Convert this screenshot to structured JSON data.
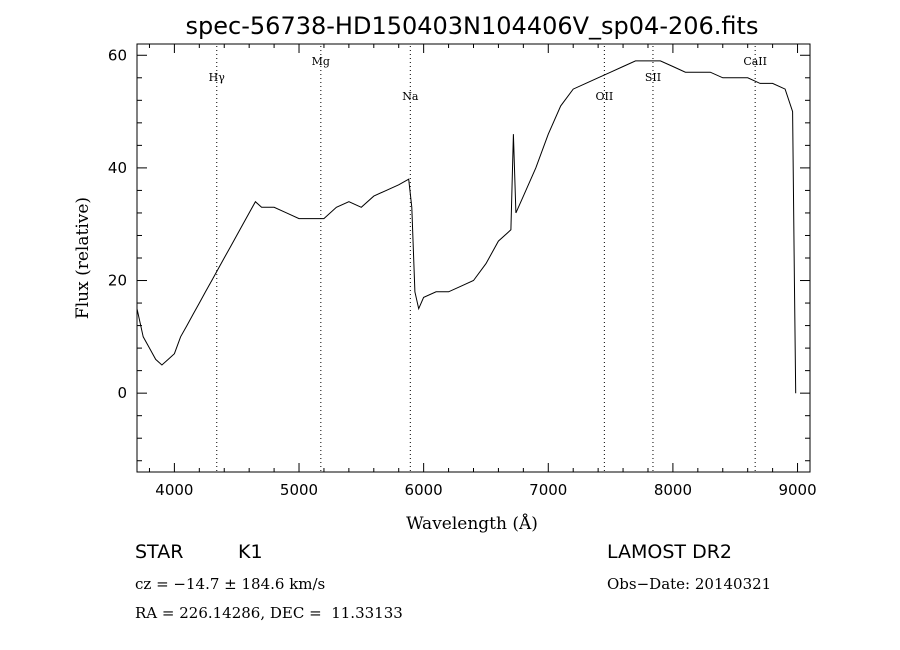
{
  "chart_data": {
    "type": "line",
    "title": "spec-56738-HD150403N104406V_sp04-206.fits",
    "xlabel": "Wavelength (Å)",
    "ylabel": "Flux (relative)",
    "xlim": [
      3700,
      9100
    ],
    "ylim": [
      -14,
      62
    ],
    "x_ticks": [
      4000,
      5000,
      6000,
      7000,
      8000,
      9000
    ],
    "y_ticks": [
      0,
      20,
      40,
      60
    ],
    "grid": false,
    "line_color": "#000000",
    "line_markers": [
      {
        "name": "Hγ",
        "wavelength": 4340
      },
      {
        "name": "Mg",
        "wavelength": 5175
      },
      {
        "name": "Na",
        "wavelength": 5893
      },
      {
        "name": "OII",
        "wavelength": 7450
      },
      {
        "name": "SII",
        "wavelength": 7840
      },
      {
        "name": "CaII",
        "wavelength": 8660
      }
    ],
    "series": [
      {
        "values": [
          [
            3700,
            15
          ],
          [
            3750,
            10
          ],
          [
            3800,
            8
          ],
          [
            3850,
            6
          ],
          [
            3900,
            5
          ],
          [
            3950,
            6
          ],
          [
            4000,
            7
          ],
          [
            4050,
            10
          ],
          [
            4100,
            12
          ],
          [
            4150,
            14
          ],
          [
            4200,
            16
          ],
          [
            4250,
            18
          ],
          [
            4300,
            20
          ],
          [
            4350,
            22
          ],
          [
            4400,
            24
          ],
          [
            4450,
            26
          ],
          [
            4500,
            28
          ],
          [
            4550,
            30
          ],
          [
            4600,
            32
          ],
          [
            4650,
            34
          ],
          [
            4700,
            33
          ],
          [
            4800,
            33
          ],
          [
            4900,
            32
          ],
          [
            5000,
            31
          ],
          [
            5100,
            31
          ],
          [
            5200,
            31
          ],
          [
            5300,
            33
          ],
          [
            5400,
            34
          ],
          [
            5500,
            33
          ],
          [
            5600,
            35
          ],
          [
            5700,
            36
          ],
          [
            5800,
            37
          ],
          [
            5880,
            38
          ],
          [
            5905,
            33
          ],
          [
            5930,
            18
          ],
          [
            5960,
            15
          ],
          [
            6000,
            17
          ],
          [
            6100,
            18
          ],
          [
            6200,
            18
          ],
          [
            6300,
            19
          ],
          [
            6400,
            20
          ],
          [
            6500,
            23
          ],
          [
            6600,
            27
          ],
          [
            6700,
            29
          ],
          [
            6720,
            46
          ],
          [
            6740,
            32
          ],
          [
            6800,
            35
          ],
          [
            6900,
            40
          ],
          [
            7000,
            46
          ],
          [
            7100,
            51
          ],
          [
            7200,
            54
          ],
          [
            7300,
            55
          ],
          [
            7400,
            56
          ],
          [
            7500,
            57
          ],
          [
            7600,
            58
          ],
          [
            7700,
            59
          ],
          [
            7800,
            59
          ],
          [
            7900,
            59
          ],
          [
            8000,
            58
          ],
          [
            8100,
            57
          ],
          [
            8200,
            57
          ],
          [
            8300,
            57
          ],
          [
            8400,
            56
          ],
          [
            8500,
            56
          ],
          [
            8600,
            56
          ],
          [
            8700,
            55
          ],
          [
            8800,
            55
          ],
          [
            8900,
            54
          ],
          [
            8960,
            50
          ],
          [
            8975,
            20
          ],
          [
            8985,
            0
          ]
        ]
      }
    ]
  },
  "info": {
    "obj_class": "STAR",
    "subclass": "K1",
    "survey": "LAMOST DR2",
    "cz": "cz = −14.7 ± 184.6 km/s",
    "obs_date": "Obs−Date: 20140321",
    "coords": "RA = 226.14286, DEC =  11.33133"
  }
}
